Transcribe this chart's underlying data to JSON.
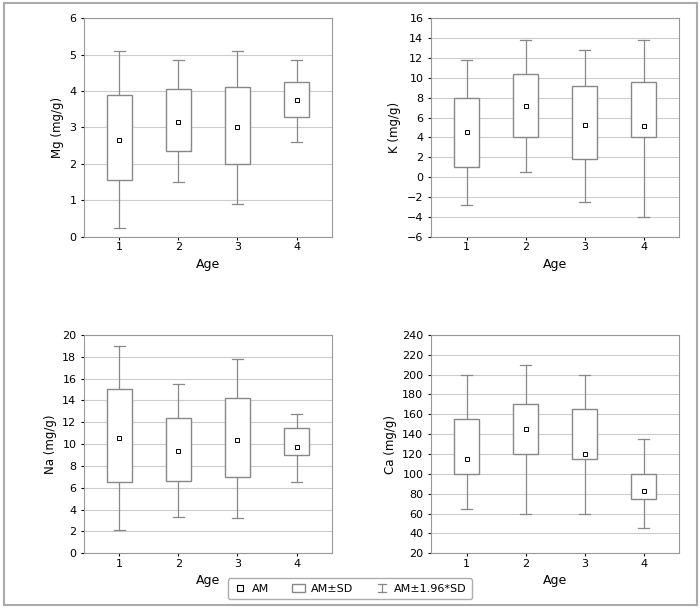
{
  "mg": {
    "ylabel": "Mg (mg/g)",
    "ylim": [
      0,
      6
    ],
    "yticks": [
      0,
      1,
      2,
      3,
      4,
      5,
      6
    ],
    "am": [
      2.65,
      3.15,
      3.0,
      3.75
    ],
    "q1": [
      1.55,
      2.35,
      2.0,
      3.3
    ],
    "q3": [
      3.9,
      4.05,
      4.1,
      4.25
    ],
    "whislo": [
      0.25,
      1.5,
      0.9,
      2.6
    ],
    "whishi": [
      5.1,
      4.85,
      5.1,
      4.85
    ]
  },
  "k": {
    "ylabel": "K (mg/g)",
    "ylim": [
      -6,
      16
    ],
    "yticks": [
      -6,
      -4,
      -2,
      0,
      2,
      4,
      6,
      8,
      10,
      12,
      14,
      16
    ],
    "am": [
      4.5,
      7.2,
      5.2,
      5.1
    ],
    "q1": [
      1.0,
      4.0,
      1.8,
      4.0
    ],
    "q3": [
      8.0,
      10.4,
      9.2,
      9.6
    ],
    "whislo": [
      -2.8,
      0.5,
      -2.5,
      -4.0
    ],
    "whishi": [
      11.8,
      13.8,
      12.8,
      13.8
    ]
  },
  "na": {
    "ylabel": "Na (mg/g)",
    "ylim": [
      0,
      20
    ],
    "yticks": [
      0,
      2,
      4,
      6,
      8,
      10,
      12,
      14,
      16,
      18,
      20
    ],
    "am": [
      10.6,
      9.4,
      10.4,
      9.7
    ],
    "q1": [
      6.5,
      6.6,
      7.0,
      9.0
    ],
    "q3": [
      15.0,
      12.4,
      14.2,
      11.5
    ],
    "whislo": [
      2.1,
      3.3,
      3.2,
      6.5
    ],
    "whishi": [
      19.0,
      15.5,
      17.8,
      12.8
    ]
  },
  "ca": {
    "ylabel": "Ca (mg/g)",
    "ylim": [
      20,
      240
    ],
    "yticks": [
      20,
      40,
      60,
      80,
      100,
      120,
      140,
      160,
      180,
      200,
      220,
      240
    ],
    "am": [
      115,
      145,
      120,
      83
    ],
    "q1": [
      100,
      120,
      115,
      75
    ],
    "q3": [
      155,
      170,
      165,
      100
    ],
    "whislo": [
      65,
      60,
      60,
      45
    ],
    "whishi": [
      200,
      210,
      200,
      135
    ]
  },
  "xlabel": "Age",
  "categories": [
    1,
    2,
    3,
    4
  ],
  "box_color": "white",
  "box_edge_color": "#888888",
  "whisker_color": "#888888",
  "mean_marker_size": 3.5,
  "bg_color": "white",
  "grid_color": "#cccccc",
  "outer_border_color": "#aaaaaa",
  "legend_items": [
    "AM",
    "AM±SD",
    "AM±1.96*SD"
  ]
}
